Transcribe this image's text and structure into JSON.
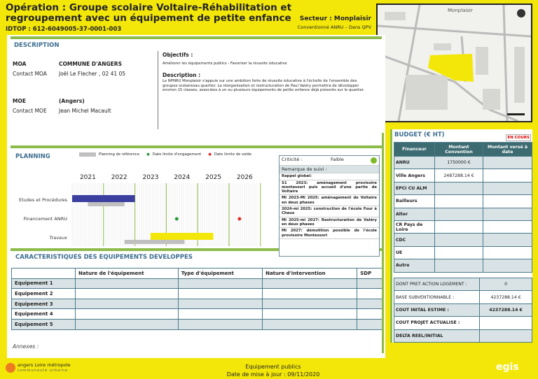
{
  "header": {
    "title": "Opération : Groupe scolaire Voltaire-Réhabilitation et regroupement avec un équipement de petite enfance",
    "idtop": "IDTOP : 612-6049005-37-0001-003",
    "secteur": "Secteur : Monplaisir",
    "convention": "Conventionné ANRU – Dans QPV"
  },
  "map": {
    "label": "Monplaisir",
    "highlight_color": "#f3e70a"
  },
  "description": {
    "title": "DESCRIPTION",
    "moa_label": "MOA",
    "moa_value": "COMMUNE D'ANGERS",
    "contact_moa_label": "Contact MOA",
    "contact_moa_value": "Joël Le Flecher , 02 41 05",
    "moe_label": "MOE",
    "moe_value": "(Angers)",
    "contact_moe_label": "Contact MOE",
    "contact_moe_value": "Jean Michel Macault",
    "objectifs_label": "Objectifs :",
    "objectifs_text": "Améliorer les équipements publics - Favoriser la réussite éducative",
    "description_label": "Description :",
    "description_text": "Le NPNRU Monplaisir s'appuie sur une ambition forte de réussite éducative à l'échelle de l'ensemble des groupes scolairesau quartier. La réorganisation et restructuration de Paul Valéry permettra de développer environ 15 classes, associées à un ou plusieurs équipements de petite enfance déjà présents sur le quartier."
  },
  "planning": {
    "title": "PLANNING",
    "legend": {
      "reference": "Planning de référence",
      "engagement": "Date limite d'engagement",
      "solde": "Date limite de solde"
    },
    "chart_data": {
      "type": "gantt",
      "years": [
        "2021",
        "2022",
        "2023",
        "2024",
        "2025",
        "2026"
      ],
      "domain": [
        "2020-07",
        "2026-06"
      ],
      "rows": [
        {
          "label": "Etudes et Procédures",
          "actual": [
            "2020-07",
            "2022-07"
          ],
          "reference": [
            "2021-01",
            "2022-03"
          ]
        },
        {
          "label": "Financement ANRU",
          "engagement": "2023-11",
          "solde": "2025-11"
        },
        {
          "label": "Travaux",
          "actual": [
            "2023-01",
            "2025-01"
          ],
          "reference": [
            "2022-03",
            "2024-02"
          ]
        }
      ],
      "colors": {
        "etudes": "#3b3fa0",
        "travaux": "#f3e70a",
        "reference": "#c0c0c0",
        "engagement": "#2e9a3e",
        "solde": "#e0302a",
        "gridline": "#8dbb4a"
      }
    }
  },
  "suivi": {
    "criticite_label": "Criticité :",
    "criticite_value": "Faible",
    "criticite_color": "#7dbb2a",
    "remarque_label": "Remarque de suivi :",
    "items": [
      "Rappel global:",
      "S1 2023: aménagement provisoire montessori puis accueil d'une partie de Voltaire",
      "Mi 2023-Mi 2025: aménagement de Voltaire en deux phases",
      "2024-mi 2025: construction de l'école Four à Chaux",
      "Mi 2025-mi 2027: Restructuration de Valéry en deux phases",
      "Mi 2027: démolition possible de l'école provisoire Montessori"
    ]
  },
  "equipements": {
    "title": "CARACTERISTIQUES DES EQUIPEMENTS DEVELOPPES",
    "columns": [
      "",
      "Nature de l'équipement",
      "Type d'équipement",
      "Nature d'intervention",
      "SDP"
    ],
    "rows": [
      "Equipement 1",
      "Equipement 2",
      "Equipement 3",
      "Equipement 4",
      "Equipement 5"
    ]
  },
  "annexes": "Annexes :",
  "budget": {
    "title": "BUDGET (€ HT)",
    "status": "EN COURS",
    "columns": [
      "Financeur",
      "Montant Convention",
      "Montant versé à date"
    ],
    "rows": [
      [
        "ANRU",
        "1750000 €",
        ""
      ],
      [
        "Ville Angers",
        "2487288.14 €",
        ""
      ],
      [
        "EPCI CU ALM",
        "",
        ""
      ],
      [
        "Bailleurs",
        "",
        ""
      ],
      [
        "Alter",
        "",
        ""
      ],
      [
        "CR Pays de Loire",
        "",
        ""
      ],
      [
        "CDC",
        "",
        ""
      ],
      [
        "UE",
        "",
        ""
      ],
      [
        "Autre",
        "",
        ""
      ]
    ],
    "summary": [
      [
        "DONT PRET ACTION LOGEMENT :",
        "0"
      ],
      [
        "BASE SUBVENTIONNABLE :",
        "4237288.14 €"
      ],
      [
        "COUT INITAL ESTIME :",
        "4237288.14 €"
      ],
      [
        "COUT PROJET ACTUALISE :",
        ""
      ],
      [
        "DELTA REEL/INITIAL",
        ""
      ]
    ]
  },
  "footer": {
    "logo_left": "angers Loire métropole",
    "logo_left_sub": "communauté urbaine",
    "center_title": "Equipement publics",
    "date": "Date de mise à jour : 09/11/2020",
    "logo_right": "egis"
  }
}
